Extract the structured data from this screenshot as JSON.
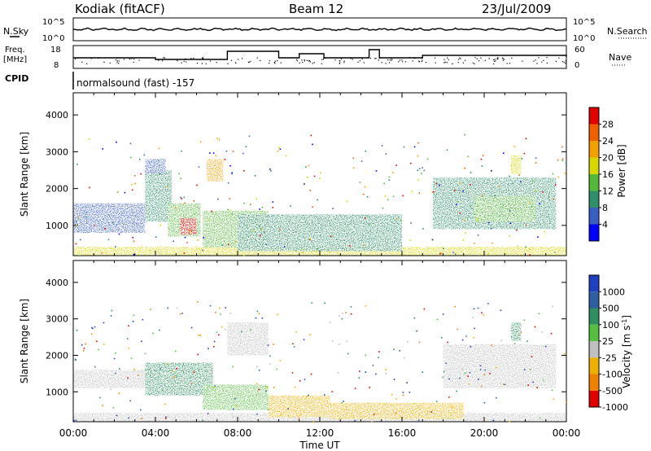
{
  "header": {
    "station": "Kodiak (fitACF)",
    "beam": "Beam 12",
    "date": "23/Jul/2009"
  },
  "noise_panel": {
    "left_label": "N.Sky",
    "right_label": "N.Search",
    "left_ticks": [
      "10^5",
      "10^0"
    ],
    "right_ticks": [
      "10^5",
      "10^0"
    ]
  },
  "freq_panel": {
    "left_label_line1": "Freq.",
    "left_label_line2": "[MHz]",
    "right_label": "Nave",
    "left_ticks": [
      "18",
      "8"
    ],
    "right_ticks": [
      "60",
      "0"
    ]
  },
  "cpid": {
    "label": "CPID",
    "text": "normalsound (fast) -157"
  },
  "chart_data": [
    {
      "type": "heatmap",
      "title": "",
      "xlabel": "Time UT",
      "ylabel": "Slant Range [km]",
      "x_ticks": [
        "00:00",
        "04:00",
        "08:00",
        "12:00",
        "16:00",
        "20:00",
        "00:00"
      ],
      "y_ticks": [
        "1000",
        "2000",
        "3000",
        "4000"
      ],
      "xlim_hours": [
        0,
        24
      ],
      "ylim_km": [
        180,
        4600
      ],
      "colorbar": {
        "label": "Power [dB]",
        "ticks": [
          "4",
          "8",
          "12",
          "16",
          "20",
          "24",
          "28"
        ],
        "colors": [
          "#0000ff",
          "#3b5fc0",
          "#2f8f6a",
          "#55b83a",
          "#d8d800",
          "#f2a000",
          "#f06000",
          "#e00000"
        ]
      },
      "regions": [
        {
          "t": [
            0.0,
            24.0
          ],
          "r": [
            180,
            420
          ],
          "level": 4
        },
        {
          "t": [
            0.0,
            3.5
          ],
          "r": [
            800,
            1600
          ],
          "level": 1
        },
        {
          "t": [
            3.5,
            4.8
          ],
          "r": [
            1100,
            2500
          ],
          "level": 2
        },
        {
          "t": [
            4.6,
            6.2
          ],
          "r": [
            700,
            1600
          ],
          "level": 3
        },
        {
          "t": [
            5.2,
            6.0
          ],
          "r": [
            750,
            1200
          ],
          "level": 7
        },
        {
          "t": [
            6.5,
            7.3
          ],
          "r": [
            2200,
            2800
          ],
          "level": 5
        },
        {
          "t": [
            6.3,
            9.5
          ],
          "r": [
            400,
            1400
          ],
          "level": 3
        },
        {
          "t": [
            8.0,
            16.0
          ],
          "r": [
            300,
            1300
          ],
          "level": 2
        },
        {
          "t": [
            17.5,
            23.5
          ],
          "r": [
            900,
            2300
          ],
          "level": 2
        },
        {
          "t": [
            19.5,
            22.5
          ],
          "r": [
            1100,
            1800
          ],
          "level": 3
        },
        {
          "t": [
            21.3,
            21.8
          ],
          "r": [
            2400,
            2900
          ],
          "level": 4
        },
        {
          "t": [
            3.5,
            4.5
          ],
          "r": [
            2400,
            2800
          ],
          "level": 1
        }
      ]
    },
    {
      "type": "heatmap",
      "title": "",
      "xlabel": "Time UT",
      "ylabel": "Slant Range [km]",
      "x_ticks": [
        "00:00",
        "04:00",
        "08:00",
        "12:00",
        "16:00",
        "20:00",
        "00:00"
      ],
      "y_ticks": [
        "1000",
        "2000",
        "3000",
        "4000"
      ],
      "xlim_hours": [
        0,
        24
      ],
      "ylim_km": [
        180,
        4600
      ],
      "colorbar": {
        "label": "Velocity [m s^-1]",
        "ticks": [
          "1000",
          "500",
          "100",
          "25",
          "-25",
          "-100",
          "-500",
          "-1000"
        ],
        "colors": [
          "#2040c0",
          "#2f5fa0",
          "#2f8f60",
          "#55c040",
          "#c0c0c0",
          "#f0b000",
          "#f08000",
          "#e00000"
        ]
      },
      "regions": [
        {
          "t": [
            0.0,
            24.0
          ],
          "r": [
            180,
            420
          ],
          "level": 4
        },
        {
          "t": [
            0.0,
            3.5
          ],
          "r": [
            1100,
            1600
          ],
          "level": 4
        },
        {
          "t": [
            3.5,
            6.8
          ],
          "r": [
            900,
            1800
          ],
          "level": 2
        },
        {
          "t": [
            6.3,
            9.5
          ],
          "r": [
            500,
            1200
          ],
          "level": 3
        },
        {
          "t": [
            9.5,
            12.5
          ],
          "r": [
            300,
            900
          ],
          "level": 5
        },
        {
          "t": [
            12.5,
            19.0
          ],
          "r": [
            250,
            700
          ],
          "level": 5
        },
        {
          "t": [
            18.0,
            23.5
          ],
          "r": [
            1100,
            2300
          ],
          "level": 4
        },
        {
          "t": [
            7.5,
            9.5
          ],
          "r": [
            2000,
            2900
          ],
          "level": 4
        },
        {
          "t": [
            21.3,
            21.8
          ],
          "r": [
            2400,
            2900
          ],
          "level": 2
        }
      ]
    }
  ]
}
